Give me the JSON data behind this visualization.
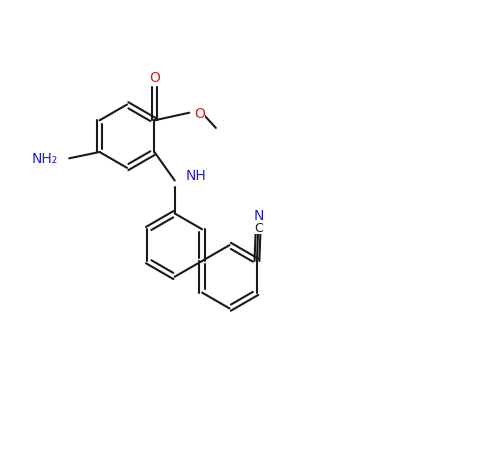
{
  "background": "#ffffff",
  "bond_color": "#1a1a1a",
  "blue": "#2222cc",
  "red": "#cc2222",
  "figsize": [
    5.01,
    4.77
  ],
  "dpi": 100,
  "bond_lw": 1.5,
  "dbo": 0.042,
  "r": 0.5,
  "xlim": [
    -2.0,
    5.5
  ],
  "ylim": [
    -2.2,
    5.2
  ]
}
